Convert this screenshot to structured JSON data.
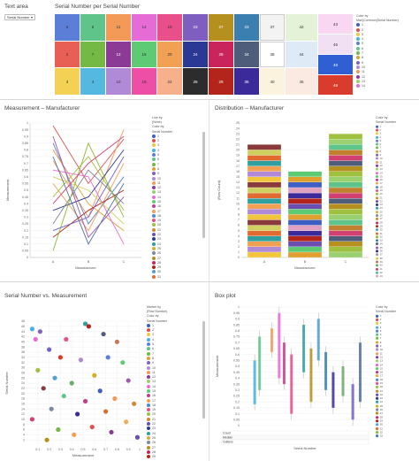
{
  "text_area": {
    "title": "Text area",
    "select_value": "Serial Number"
  },
  "treemap": {
    "title": "Serial Number per Serial Number",
    "legend_title": [
      "Color by",
      "Max(Common(Serial Number)"
    ],
    "tiles": [
      {
        "label": "5",
        "color": "#5b7fd7"
      },
      {
        "label": "6",
        "color": "#5fc48a"
      },
      {
        "label": "11",
        "color": "#f39a58"
      },
      {
        "label": "14",
        "color": "#e76bd6"
      },
      {
        "label": "19",
        "color": "#e94f8a"
      },
      {
        "label": "23",
        "color": "#7e5fc0"
      },
      {
        "label": "27",
        "color": "#b5901f"
      },
      {
        "label": "33",
        "color": "#3a7fb0"
      },
      {
        "label": "37",
        "color": "#f3f3f3"
      },
      {
        "label": "42",
        "color": "#e4f2d8"
      },
      {
        "label": "43",
        "color": "#f9d7f3"
      },
      {
        "label": "2",
        "color": "#e85f56"
      },
      {
        "label": "7",
        "color": "#73b944"
      },
      {
        "label": "12",
        "color": "#8b3b95"
      },
      {
        "label": "15",
        "color": "#5ecb74"
      },
      {
        "label": "20",
        "color": "#f1a054"
      },
      {
        "label": "24",
        "color": "#2a3a94"
      },
      {
        "label": "28",
        "color": "#c9245b"
      },
      {
        "label": "34",
        "color": "#4e5e7a"
      },
      {
        "label": "38",
        "color": "#ffffff"
      },
      {
        "label": "44",
        "color": "#dfeaf7"
      },
      {
        "label": "46",
        "color": "#f1dff4"
      },
      {
        "label": "3",
        "color": "#f4d154"
      },
      {
        "label": "4",
        "color": "#55b8e0"
      },
      {
        "label": "10",
        "color": "#b08ad6"
      },
      {
        "label": "18",
        "color": "#ec4fa5"
      },
      {
        "label": "22",
        "color": "#f6b08c"
      },
      {
        "label": "26",
        "color": "#2c2c2c"
      },
      {
        "label": "29",
        "color": "#b3241b"
      },
      {
        "label": "36",
        "color": "#3a2a9a"
      },
      {
        "label": "40",
        "color": "#fbf3de"
      },
      {
        "label": "45",
        "color": "#fbeae2"
      },
      {
        "label": "48",
        "color": "#2f5fd2"
      },
      {
        "label": "49",
        "color": "#d93c2c"
      }
    ],
    "legend": [
      {
        "label": "1",
        "color": "#3d5fc4"
      },
      {
        "label": "2",
        "color": "#e05050"
      },
      {
        "label": "3",
        "color": "#f2c63c"
      },
      {
        "label": "4",
        "color": "#48b0e0"
      },
      {
        "label": "5",
        "color": "#5b7fd7"
      },
      {
        "label": "6",
        "color": "#5fc48a"
      },
      {
        "label": "7",
        "color": "#73b944"
      },
      {
        "label": "8",
        "color": "#e0a030"
      },
      {
        "label": "9",
        "color": "#8060c0"
      },
      {
        "label": "10",
        "color": "#b08ad6"
      },
      {
        "label": "11",
        "color": "#f39a58"
      },
      {
        "label": "12",
        "color": "#8b3b95"
      },
      {
        "label": "13",
        "color": "#9ad070"
      },
      {
        "label": "14",
        "color": "#e76bd6"
      }
    ]
  },
  "line_chart": {
    "title": "Measurement – Manufacturer",
    "legend_line_by": [
      "Line by",
      "(None)"
    ],
    "legend_color_by": [
      "Color by",
      "Serial Number"
    ],
    "xlabel": "Manufacturer",
    "ylabel": "Measurement",
    "legend": [
      "1",
      "2",
      "3",
      "4",
      "5",
      "6",
      "7",
      "8",
      "9",
      "10",
      "11",
      "12",
      "13",
      "14",
      "15",
      "16",
      "17",
      "18",
      "19",
      "20",
      "21",
      "22",
      "23",
      "24",
      "25",
      "26",
      "27",
      "28",
      "29",
      "30",
      "31"
    ]
  },
  "dist_chart": {
    "title": "Distribution – Manufacturer",
    "legend_title": [
      "Color by",
      "Serial Number"
    ],
    "xlabel": "Manufacturer",
    "ylabel": "(Row Count)",
    "legend": [
      "1",
      "2",
      "3",
      "4",
      "5",
      "6",
      "7",
      "8",
      "9",
      "10",
      "11",
      "12",
      "13",
      "14",
      "15",
      "16",
      "17",
      "18",
      "19",
      "20",
      "21",
      "22",
      "23",
      "24",
      "25",
      "26",
      "27",
      "28",
      "29",
      "30",
      "31",
      "32",
      "33",
      "34",
      "35",
      "36",
      "37",
      "38",
      "39",
      "40",
      "41",
      "42",
      "43"
    ]
  },
  "scatter": {
    "title": "Serial Number vs. Measurement",
    "legend_marker": [
      "Marker by",
      "(Row Number)"
    ],
    "legend_color": [
      "Color by",
      "Serial Number"
    ],
    "xlabel": "Measurement",
    "ylabel": "Serial Number",
    "legend": [
      "1",
      "2",
      "3",
      "4",
      "5",
      "6",
      "7",
      "8",
      "9",
      "10",
      "11",
      "12",
      "13",
      "14",
      "15",
      "16",
      "17",
      "18",
      "19",
      "20",
      "21",
      "22",
      "23",
      "24",
      "25",
      "26",
      "27",
      "28",
      "29"
    ]
  },
  "boxplot": {
    "title": "Box plot",
    "legend_title": [
      "Color by",
      "Serial Number"
    ],
    "xlabel": "Serial Number",
    "ylabel": "Measurement",
    "table_rows": [
      "Count",
      "Median",
      "Outliers"
    ],
    "legend": [
      "1",
      "2",
      "3",
      "4",
      "5",
      "6",
      "7",
      "8",
      "9",
      "10",
      "11",
      "12",
      "13",
      "14",
      "15",
      "16",
      "17",
      "18",
      "19",
      "20",
      "21",
      "22",
      "23",
      "24",
      "25",
      "26",
      "27",
      "28",
      "29",
      "30",
      "31",
      "32",
      "33"
    ]
  },
  "chart_data": [
    {
      "type": "line",
      "title": "Measurement – Manufacturer",
      "categories": [
        "A",
        "B",
        "C"
      ],
      "xlabel": "Manufacturer",
      "ylabel": "Measurement",
      "ylim": [
        0,
        1
      ],
      "yticks": [
        "0",
        "0.05",
        "0.1",
        "0.15",
        "0.2",
        "0.25",
        "0.3",
        "0.35",
        "0.4",
        "0.45",
        "0.5",
        "0.55",
        "0.6",
        "0.65",
        "0.7",
        "0.75",
        "0.8",
        "0.85",
        "0.9",
        "0.95",
        "1"
      ],
      "series": [
        {
          "name": "1",
          "values": [
            0.98,
            0.55,
            0.88
          ]
        },
        {
          "name": "2",
          "values": [
            0.85,
            0.25,
            0.6
          ]
        },
        {
          "name": "3",
          "values": [
            0.8,
            0.4,
            0.2
          ]
        },
        {
          "name": "4",
          "values": [
            0.72,
            0.3,
            0.95
          ]
        },
        {
          "name": "5",
          "values": [
            0.65,
            0.6,
            0.1
          ]
        },
        {
          "name": "6",
          "values": [
            0.55,
            0.2,
            0.7
          ]
        },
        {
          "name": "7",
          "values": [
            0.45,
            0.75,
            0.35
          ]
        },
        {
          "name": "8",
          "values": [
            0.35,
            0.45,
            0.8
          ]
        },
        {
          "name": "9",
          "values": [
            0.25,
            0.65,
            0.4
          ]
        },
        {
          "name": "10",
          "values": [
            0.15,
            0.35,
            0.5
          ]
        },
        {
          "name": "11",
          "values": [
            0.05,
            0.85,
            0.3
          ]
        },
        {
          "name": "12",
          "values": [
            0.9,
            0.15,
            0.45
          ]
        },
        {
          "name": "13",
          "values": [
            0.6,
            0.5,
            0.25
          ]
        },
        {
          "name": "14",
          "values": [
            0.4,
            0.7,
            0.9
          ]
        },
        {
          "name": "15",
          "values": [
            0.2,
            0.3,
            0.75
          ]
        },
        {
          "name": "16",
          "values": [
            0.75,
            0.1,
            0.55
          ]
        }
      ]
    },
    {
      "type": "bar",
      "title": "Distribution – Manufacturer",
      "categories": [
        "A",
        "B",
        "C"
      ],
      "xlabel": "Manufacturer",
      "ylabel": "(Row Count)",
      "ylim": [
        0,
        25
      ],
      "yticks": [
        "0",
        "1",
        "2",
        "3",
        "4",
        "5",
        "6",
        "7",
        "8",
        "9",
        "10",
        "11",
        "12",
        "13",
        "14",
        "15",
        "16",
        "17",
        "18",
        "19",
        "20",
        "21",
        "22",
        "23",
        "24",
        "25"
      ],
      "values": [
        21,
        16,
        23
      ]
    },
    {
      "type": "scatter",
      "title": "Serial Number vs. Measurement",
      "xlabel": "Measurement",
      "ylabel": "Serial Number",
      "xlim": [
        0,
        1
      ],
      "ylim": [
        0,
        48
      ],
      "xticks": [
        "0.1",
        "0.2",
        "0.3",
        "0.4",
        "0.5",
        "0.6",
        "0.7",
        "0.8",
        "0.9",
        "1"
      ],
      "yticks": [
        "2",
        "4",
        "6",
        "8",
        "10",
        "12",
        "14",
        "16",
        "18",
        "20",
        "22",
        "24",
        "26",
        "28",
        "30",
        "32",
        "34",
        "36",
        "38",
        "40",
        "42",
        "44",
        "46",
        "48"
      ],
      "points": [
        [
          0.05,
          45
        ],
        [
          0.12,
          44
        ],
        [
          0.08,
          41
        ],
        [
          0.35,
          41
        ],
        [
          0.52,
          47
        ],
        [
          0.55,
          46
        ],
        [
          0.68,
          43
        ],
        [
          0.8,
          40
        ],
        [
          0.2,
          37
        ],
        [
          0.3,
          34
        ],
        [
          0.72,
          34
        ],
        [
          0.48,
          33
        ],
        [
          0.85,
          32
        ],
        [
          0.1,
          29
        ],
        [
          0.6,
          27
        ],
        [
          0.25,
          26
        ],
        [
          0.9,
          25
        ],
        [
          0.4,
          24
        ],
        [
          0.15,
          22
        ],
        [
          0.65,
          21
        ],
        [
          0.33,
          19
        ],
        [
          0.78,
          18
        ],
        [
          0.52,
          17
        ],
        [
          0.95,
          16
        ],
        [
          0.22,
          14
        ],
        [
          0.7,
          13
        ],
        [
          0.45,
          12
        ],
        [
          0.05,
          10
        ],
        [
          0.88,
          9
        ],
        [
          0.58,
          7
        ],
        [
          0.28,
          6
        ],
        [
          0.75,
          5
        ],
        [
          0.42,
          4
        ],
        [
          0.98,
          3
        ],
        [
          0.18,
          2
        ]
      ]
    },
    {
      "type": "bar",
      "title": "Box plot",
      "xlabel": "Serial Number",
      "ylabel": "Measurement",
      "ylim": [
        0,
        1
      ],
      "yticks": [
        "0",
        "0.05",
        "0.1",
        "0.15",
        "0.2",
        "0.25",
        "0.3",
        "0.35",
        "0.4",
        "0.45",
        "0.5",
        "0.55",
        "0.6",
        "0.65",
        "0.7",
        "0.75",
        "0.8",
        "0.85",
        "0.9",
        "0.95",
        "1"
      ],
      "boxes": [
        {
          "x": 4,
          "low": 0.18,
          "high": 0.55
        },
        {
          "x": 6,
          "low": 0.3,
          "high": 0.75
        },
        {
          "x": 11,
          "low": 0.62,
          "high": 0.82
        },
        {
          "x": 14,
          "low": 0.4,
          "high": 0.95
        },
        {
          "x": 16,
          "low": 0.35,
          "high": 0.7
        },
        {
          "x": 19,
          "low": 0.1,
          "high": 0.6
        },
        {
          "x": 24,
          "low": 0.45,
          "high": 0.85
        },
        {
          "x": 27,
          "low": 0.2,
          "high": 0.65
        },
        {
          "x": 30,
          "low": 0.55,
          "high": 0.9
        },
        {
          "x": 33,
          "low": 0.3,
          "high": 0.62
        },
        {
          "x": 36,
          "low": 0.15,
          "high": 0.45
        },
        {
          "x": 40,
          "low": 0.25,
          "high": 0.5
        },
        {
          "x": 44,
          "low": 0.05,
          "high": 0.35
        },
        {
          "x": 47,
          "low": 0.2,
          "high": 0.7
        }
      ]
    }
  ]
}
